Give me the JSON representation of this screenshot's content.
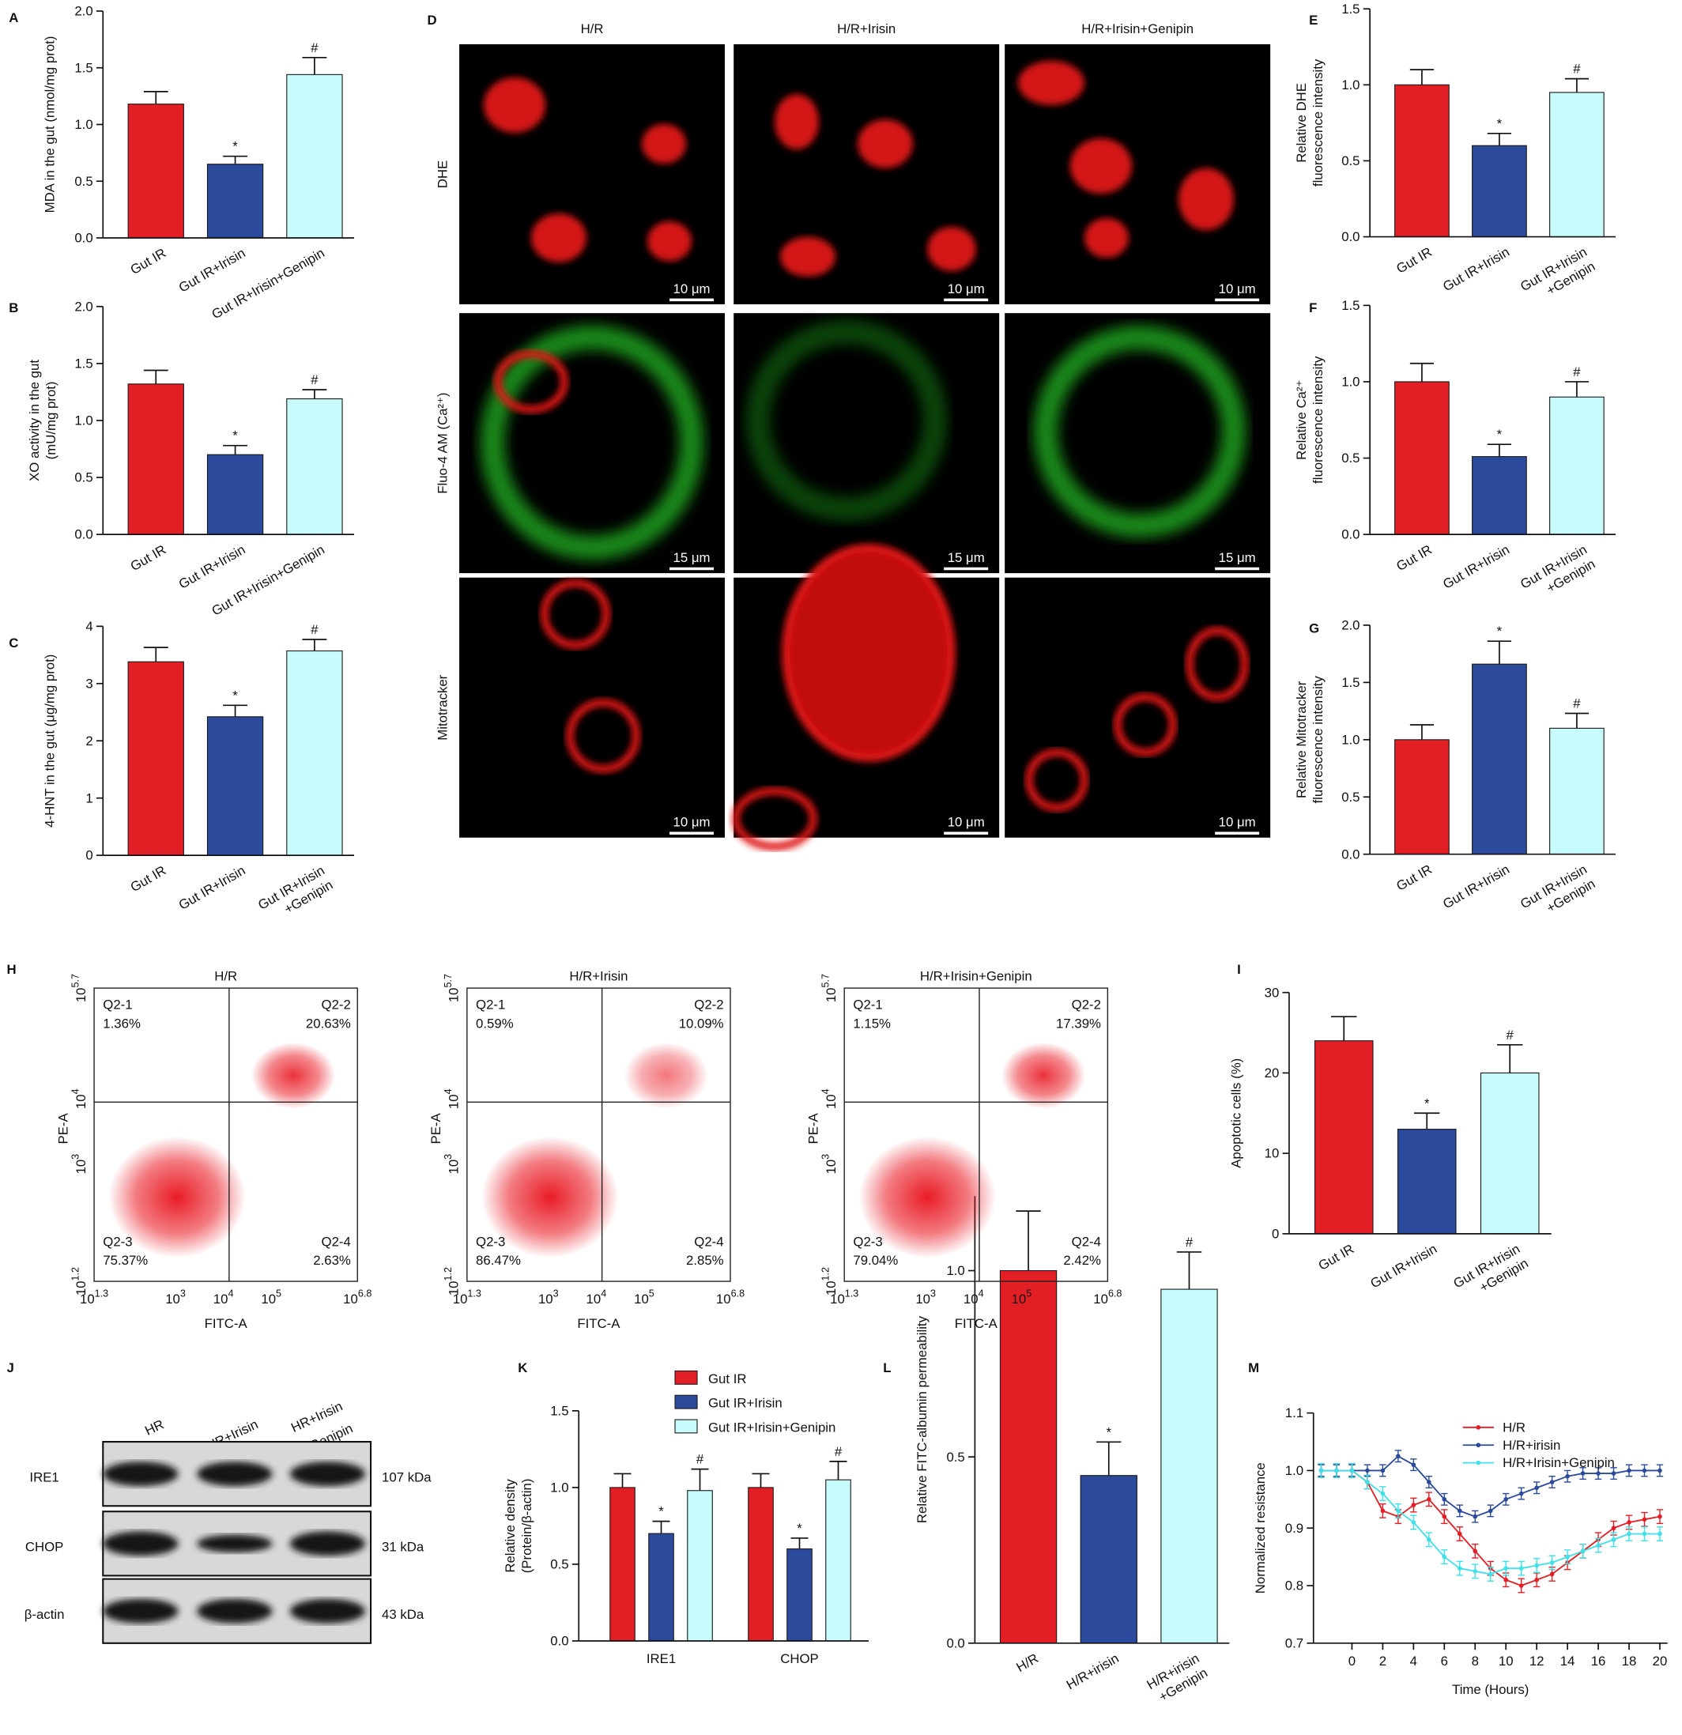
{
  "chart_data": [
    {
      "panel": "A",
      "type": "bar",
      "ylabel": "MDA in the gut (nmol/mg prot)",
      "categories": [
        "Gut IR",
        "Gut IR+Irisin",
        "Gut IR+Irisin+Genipin"
      ],
      "values": [
        1.18,
        0.65,
        1.44
      ],
      "errors": [
        0.11,
        0.07,
        0.15
      ],
      "annotations": [
        null,
        "*",
        "#"
      ],
      "colors": [
        "#e31f26",
        "#2b4a9b",
        "#c8fcfc"
      ],
      "ylim": [
        0,
        2
      ],
      "yticks": [
        {
          "value": 0,
          "label": "0.0"
        },
        0.5,
        {
          "value": 1,
          "label": "1.0"
        },
        1.5,
        {
          "value": 2,
          "label": "2.0"
        }
      ]
    },
    {
      "panel": "B",
      "type": "bar",
      "ylabel": [
        "XO activity in the gut",
        "(mU/mg prot)"
      ],
      "categories": [
        "Gut IR",
        "Gut IR+Irisin",
        "Gut IR+Irisin+Genipin"
      ],
      "values": [
        1.32,
        0.7,
        1.19
      ],
      "errors": [
        0.12,
        0.08,
        0.08
      ],
      "annotations": [
        null,
        "*",
        "#"
      ],
      "colors": [
        "#e31f26",
        "#2b4a9b",
        "#c8fcfc"
      ],
      "ylim": [
        0,
        2
      ],
      "yticks": [
        {
          "value": 0,
          "label": "0.0"
        },
        0.5,
        {
          "value": 1,
          "label": "1.0"
        },
        1.5,
        {
          "value": 2,
          "label": "2.0"
        }
      ]
    },
    {
      "panel": "C",
      "type": "bar",
      "ylabel": "4-HNT in the gut (μg/mg prot)",
      "categories": [
        "Gut IR",
        "Gut IR+Irisin",
        [
          "Gut IR+Irisin",
          "+Genipin"
        ]
      ],
      "values": [
        3.38,
        2.42,
        3.57
      ],
      "errors": [
        0.25,
        0.2,
        0.2
      ],
      "annotations": [
        null,
        "*",
        "#"
      ],
      "colors": [
        "#e31f26",
        "#2b4a9b",
        "#c8fcfc"
      ],
      "ylim": [
        0,
        4
      ],
      "yticks": [
        0,
        1,
        2,
        3,
        4
      ]
    },
    {
      "panel": "E",
      "type": "bar",
      "ylabel": [
        "Relative DHE",
        "fluorescence intensity"
      ],
      "categories": [
        "Gut IR",
        "Gut IR+Irisin",
        [
          "Gut IR+Irisin",
          "+Genipin"
        ]
      ],
      "values": [
        1.0,
        0.6,
        0.95
      ],
      "errors": [
        0.1,
        0.08,
        0.09
      ],
      "annotations": [
        null,
        "*",
        "#"
      ],
      "colors": [
        "#e31f26",
        "#2b4a9b",
        "#c8fcfc"
      ],
      "ylim": [
        0,
        1.5
      ],
      "yticks": [
        {
          "value": 0,
          "label": "0.0"
        },
        0.5,
        {
          "value": 1,
          "label": "1.0"
        },
        1.5
      ]
    },
    {
      "panel": "F",
      "type": "bar",
      "ylabel": [
        "Relative Ca²⁺",
        "fluorescence intensity"
      ],
      "categories": [
        "Gut IR",
        "Gut IR+Irisin",
        [
          "Gut IR+Irisin",
          "+Genipin"
        ]
      ],
      "values": [
        1.0,
        0.51,
        0.9
      ],
      "errors": [
        0.12,
        0.08,
        0.1
      ],
      "annotations": [
        null,
        "*",
        "#"
      ],
      "colors": [
        "#e31f26",
        "#2b4a9b",
        "#c8fcfc"
      ],
      "ylim": [
        0,
        1.5
      ],
      "yticks": [
        {
          "value": 0,
          "label": "0.0"
        },
        0.5,
        {
          "value": 1,
          "label": "1.0"
        },
        1.5
      ]
    },
    {
      "panel": "G",
      "type": "bar",
      "ylabel": [
        "Relative Mitotracker",
        "fluorescence intensity"
      ],
      "categories": [
        "Gut IR",
        "Gut IR+Irisin",
        [
          "Gut IR+Irisin",
          "+Genipin"
        ]
      ],
      "values": [
        1.0,
        1.66,
        1.1
      ],
      "errors": [
        0.13,
        0.2,
        0.13
      ],
      "annotations": [
        null,
        "*",
        "#"
      ],
      "colors": [
        "#e31f26",
        "#2b4a9b",
        "#c8fcfc"
      ],
      "ylim": [
        0,
        2
      ],
      "yticks": [
        {
          "value": 0,
          "label": "0.0"
        },
        0.5,
        {
          "value": 1,
          "label": "1.0"
        },
        1.5,
        {
          "value": 2,
          "label": "2.0"
        }
      ]
    },
    {
      "panel": "I",
      "type": "bar",
      "ylabel": "Apoptotic cells (%)",
      "categories": [
        "Gut IR",
        "Gut IR+Irisin",
        [
          "Gut IR+Irisin",
          "+Genipin"
        ]
      ],
      "values": [
        24,
        13,
        20
      ],
      "errors": [
        3,
        2,
        3.5
      ],
      "annotations": [
        null,
        "*",
        "#"
      ],
      "colors": [
        "#e31f26",
        "#2b4a9b",
        "#c8fcfc"
      ],
      "ylim": [
        0,
        30
      ],
      "yticks": [
        0,
        10,
        20,
        30
      ]
    },
    {
      "panel": "K",
      "type": "bar",
      "ylabel": [
        "Relative density",
        "(Protein/β-actin)"
      ],
      "categories": [
        "IRE1",
        "CHOP"
      ],
      "series": [
        {
          "name": "Gut IR",
          "color": "#e31f26",
          "values": [
            1.0,
            1.0
          ],
          "errors": [
            0.09,
            0.09
          ]
        },
        {
          "name": "Gut IR+Irisin",
          "color": "#2b4a9b",
          "values": [
            0.7,
            0.6
          ],
          "errors": [
            0.08,
            0.07
          ],
          "annotations": [
            "*",
            "*"
          ]
        },
        {
          "name": "Gut IR+Irisin+Genipin",
          "color": "#c8fcfc",
          "values": [
            0.98,
            1.05
          ],
          "errors": [
            0.14,
            0.12
          ],
          "annotations": [
            "#",
            "#"
          ]
        }
      ],
      "ylim": [
        0,
        1.5
      ],
      "yticks": [
        {
          "value": 0,
          "label": "0.0"
        },
        0.5,
        {
          "value": 1,
          "label": "1.0"
        },
        1.5
      ],
      "legend": "top"
    },
    {
      "panel": "L",
      "type": "bar",
      "ylabel": "Relative FITC-albumin permeability",
      "categories": [
        "H/R",
        "H/R+irisin",
        [
          "H/R+irisin",
          "+Genipin"
        ]
      ],
      "values": [
        1.0,
        0.45,
        0.95
      ],
      "errors": [
        0.16,
        0.09,
        0.1
      ],
      "annotations": [
        null,
        "*",
        "#"
      ],
      "colors": [
        "#e31f26",
        "#2b4a9b",
        "#c8fcfc"
      ],
      "ylim": [
        0,
        1.2
      ],
      "yticks": [
        {
          "value": 0,
          "label": "0.0"
        },
        0.5,
        {
          "value": 1,
          "label": "1.0"
        }
      ]
    },
    {
      "panel": "M",
      "type": "line",
      "xlabel": "Time (Hours)",
      "ylabel": "Normalized resistance",
      "x": [
        -2,
        -1,
        0,
        1,
        2,
        3,
        4,
        5,
        6,
        7,
        8,
        9,
        10,
        11,
        12,
        13,
        14,
        15,
        16,
        17,
        18,
        19,
        20
      ],
      "series": [
        {
          "name": "H/R",
          "color": "#e31f26",
          "error": 0.012,
          "values": [
            1.0,
            1.0,
            1.0,
            0.98,
            0.93,
            0.92,
            0.94,
            0.95,
            0.92,
            0.89,
            0.86,
            0.83,
            0.81,
            0.8,
            0.81,
            0.82,
            0.84,
            0.86,
            0.88,
            0.9,
            0.91,
            0.915,
            0.92
          ]
        },
        {
          "name": "H/R+irisin",
          "color": "#2b4a9b",
          "error": 0.01,
          "values": [
            1.0,
            1.0,
            1.0,
            1.0,
            1.0,
            1.025,
            1.01,
            0.98,
            0.95,
            0.93,
            0.92,
            0.93,
            0.95,
            0.96,
            0.97,
            0.98,
            0.99,
            0.995,
            0.995,
            0.995,
            1.0,
            1.0,
            1.0
          ]
        },
        {
          "name": "H/R+Irisin+Genipin",
          "color": "#3fe0e8",
          "error": 0.012,
          "values": [
            1.0,
            1.0,
            1.0,
            0.98,
            0.96,
            0.93,
            0.91,
            0.88,
            0.85,
            0.83,
            0.825,
            0.82,
            0.83,
            0.83,
            0.835,
            0.84,
            0.85,
            0.86,
            0.87,
            0.88,
            0.89,
            0.89,
            0.89
          ]
        }
      ],
      "xlim": [
        -2.5,
        20.5
      ],
      "ylim": [
        0.7,
        1.1
      ],
      "xticks": [
        0,
        2,
        4,
        6,
        8,
        10,
        12,
        14,
        16,
        18,
        20
      ],
      "yticks": [
        0.7,
        0.8,
        0.9,
        {
          "value": 1,
          "label": "1.0"
        },
        1.1
      ],
      "legend": "upper right"
    }
  ],
  "microscopy": {
    "panel": "D",
    "columns": [
      "H/R",
      "H/R+Irisin",
      "H/R+Irisin+Genipin"
    ],
    "rows": [
      {
        "label": "DHE",
        "scale_bar": "10 μm"
      },
      {
        "label": "Fluo-4 AM (Ca²⁺)",
        "scale_bar": "15 μm"
      },
      {
        "label": "Mitotracker",
        "scale_bar": "10 μm"
      }
    ]
  },
  "flow": {
    "panel": "H",
    "xlabel": "FITC-A",
    "ylabel": "PE-A",
    "xticks": [
      {
        "base": "10",
        "exp": "1.3"
      },
      {
        "base": "10",
        "exp": "3"
      },
      {
        "base": "10",
        "exp": "4"
      },
      {
        "base": "10",
        "exp": "5"
      },
      {
        "base": "10",
        "exp": "6.8"
      }
    ],
    "yticks": [
      {
        "base": "10",
        "exp": "1.2"
      },
      {
        "base": "10",
        "exp": "3"
      },
      {
        "base": "10",
        "exp": "4"
      },
      {
        "base": "10",
        "exp": "5.7"
      }
    ],
    "plots": [
      {
        "title": "H/R",
        "quadrants": [
          {
            "name": "Q2-1",
            "value": "1.36%"
          },
          {
            "name": "Q2-2",
            "value": "20.63%"
          },
          {
            "name": "Q2-3",
            "value": "75.37%"
          },
          {
            "name": "Q2-4",
            "value": "2.63%"
          }
        ]
      },
      {
        "title": "H/R+Irisin",
        "quadrants": [
          {
            "name": "Q2-1",
            "value": "0.59%"
          },
          {
            "name": "Q2-2",
            "value": "10.09%"
          },
          {
            "name": "Q2-3",
            "value": "86.47%"
          },
          {
            "name": "Q2-4",
            "value": "2.85%"
          }
        ]
      },
      {
        "title": "H/R+Irisin+Genipin",
        "quadrants": [
          {
            "name": "Q2-1",
            "value": "1.15%"
          },
          {
            "name": "Q2-2",
            "value": "17.39%"
          },
          {
            "name": "Q2-3",
            "value": "79.04%"
          },
          {
            "name": "Q2-4",
            "value": "2.42%"
          }
        ]
      }
    ]
  },
  "blot": {
    "panel": "J",
    "lanes": [
      "HR",
      "HR+Irisin",
      [
        "HR+Irisin",
        "+Genipin"
      ]
    ],
    "rows": [
      {
        "protein": "IRE1",
        "size": "107 kDa"
      },
      {
        "protein": "CHOP",
        "size": "31 kDa"
      },
      {
        "protein": "β-actin",
        "size": "43 kDa"
      }
    ]
  }
}
